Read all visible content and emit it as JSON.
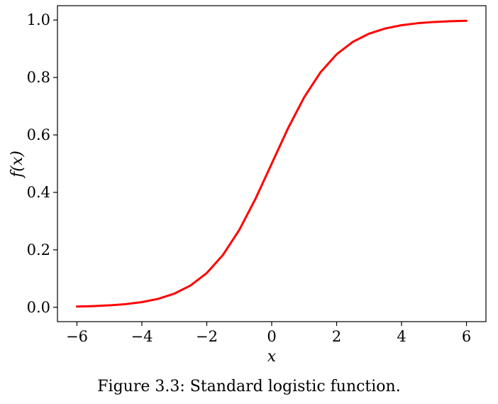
{
  "caption": "Figure 3.3: Standard logistic function.",
  "chart_data": {
    "type": "line",
    "title": "",
    "xlabel": "x",
    "ylabel": "f(x)",
    "xlim": [
      -6.6,
      6.6
    ],
    "ylim": [
      -0.05,
      1.05
    ],
    "x_ticks": [
      -6,
      -4,
      -2,
      0,
      2,
      4,
      6
    ],
    "x_tick_labels": [
      "−6",
      "−4",
      "−2",
      "0",
      "2",
      "4",
      "6"
    ],
    "y_ticks": [
      0.0,
      0.2,
      0.4,
      0.6,
      0.8,
      1.0
    ],
    "y_tick_labels": [
      "0.0",
      "0.2",
      "0.4",
      "0.6",
      "0.8",
      "1.0"
    ],
    "grid": false,
    "series": [
      {
        "color": "#ff0000",
        "x": [
          -6,
          -5.5,
          -5,
          -4.5,
          -4,
          -3.5,
          -3,
          -2.5,
          -2,
          -1.5,
          -1,
          -0.5,
          0,
          0.5,
          1,
          1.5,
          2,
          2.5,
          3,
          3.5,
          4,
          4.5,
          5,
          5.5,
          6
        ],
        "y": [
          0.0025,
          0.0041,
          0.0067,
          0.011,
          0.018,
          0.0293,
          0.0474,
          0.0759,
          0.1192,
          0.1824,
          0.2689,
          0.3775,
          0.5,
          0.6225,
          0.7311,
          0.8176,
          0.8808,
          0.9241,
          0.9526,
          0.9707,
          0.982,
          0.989,
          0.9933,
          0.9959,
          0.9975
        ]
      }
    ]
  }
}
